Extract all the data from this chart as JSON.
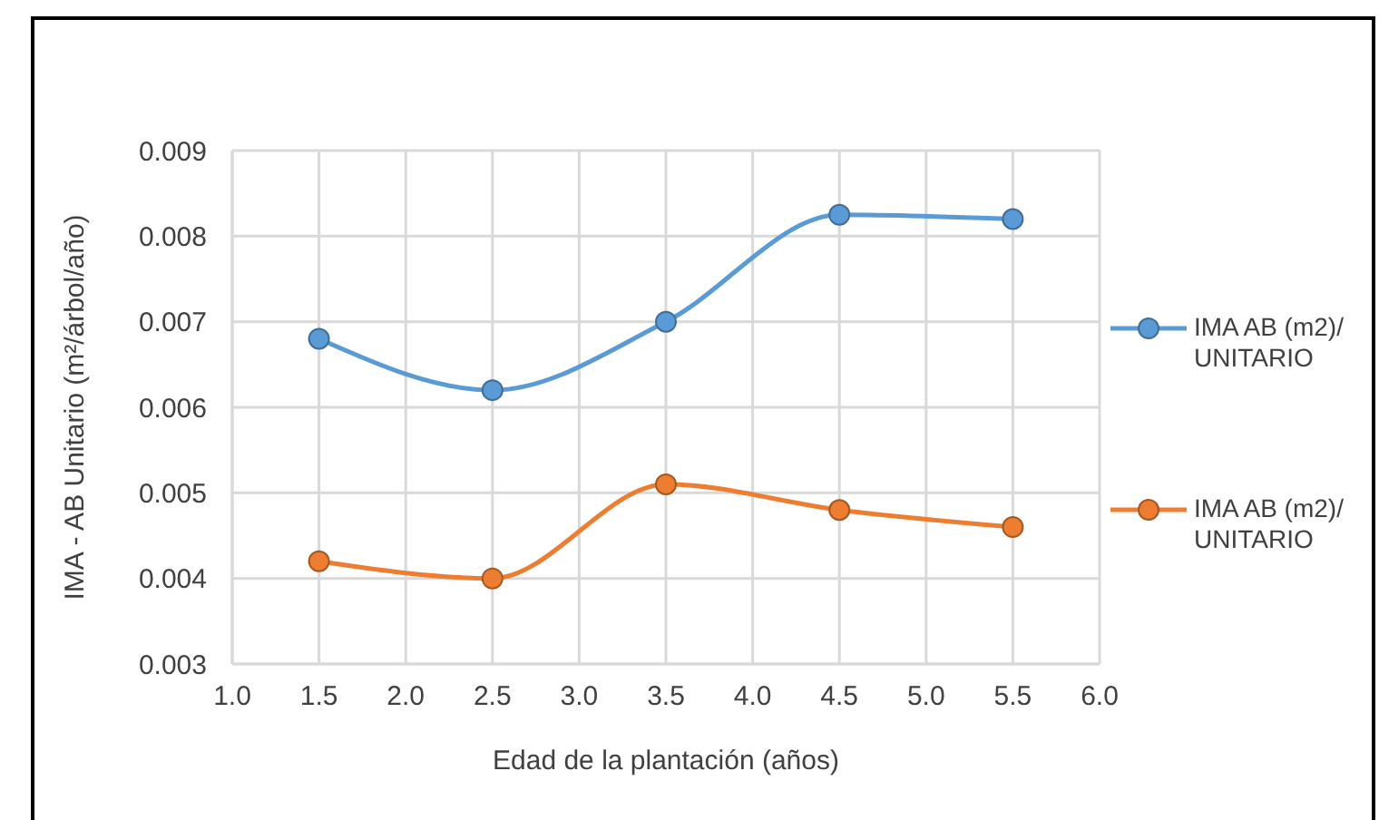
{
  "chart_data": {
    "type": "line",
    "xlabel": "Edad de la plantación (años)",
    "ylabel": "IMA - AB Unitario  (m²/árbol/año)",
    "x": [
      1.5,
      2.5,
      3.5,
      4.5,
      5.5
    ],
    "series": [
      {
        "name": "IMA AB (m2)/ UNITARIO",
        "color": "#5b9bd5",
        "values": [
          0.0068,
          0.0062,
          0.007,
          0.00825,
          0.0082
        ]
      },
      {
        "name": "IMA AB (m2)/ UNITARIO",
        "color": "#ed7d31",
        "values": [
          0.0042,
          0.004,
          0.0051,
          0.0048,
          0.0046
        ]
      }
    ],
    "xlim": [
      1,
      6
    ],
    "xticks": [
      {
        "value": 1,
        "label": "1.0"
      },
      1.5,
      {
        "value": 2,
        "label": "2.0"
      },
      2.5,
      {
        "value": 3,
        "label": "3.0"
      },
      3.5,
      {
        "value": 4,
        "label": "4.0"
      },
      4.5,
      {
        "value": 5,
        "label": "5.0"
      },
      5.5,
      {
        "value": 6,
        "label": "6.0"
      }
    ],
    "ylim": [
      0.003,
      0.009
    ],
    "yticks": [
      0.003,
      0.004,
      0.005,
      0.006,
      0.007,
      0.008,
      0.009
    ],
    "grid": true,
    "legend": "right",
    "marker": "circle"
  }
}
